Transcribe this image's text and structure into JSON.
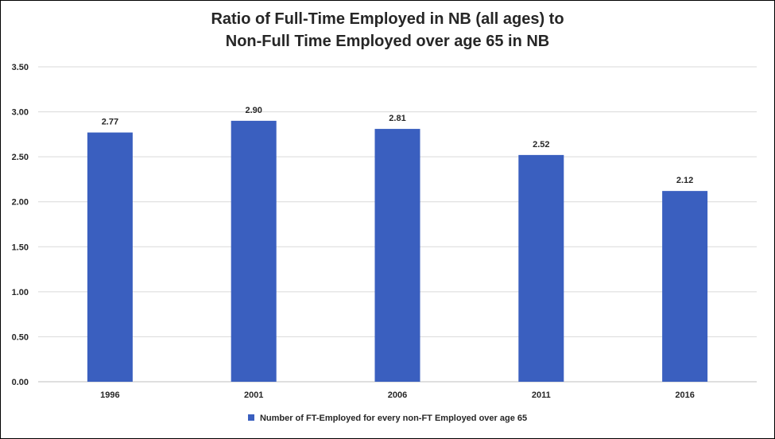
{
  "chart_data": {
    "type": "bar",
    "title_lines": [
      "Ratio of Full-Time Employed in NB (all ages) to",
      "Non-Full Time Employed over age 65 in NB"
    ],
    "categories": [
      "1996",
      "2001",
      "2006",
      "2011",
      "2016"
    ],
    "series": [
      {
        "name": "Number of FT-Employed for every non-FT Employed over age 65",
        "values": [
          2.77,
          2.9,
          2.81,
          2.52,
          2.12
        ],
        "data_labels": [
          "2.77",
          "2.90",
          "2.81",
          "2.52",
          "2.12"
        ],
        "color": "#3a5fbf"
      }
    ],
    "ylim": [
      0,
      3.5
    ],
    "yticks": [
      "0.00",
      "0.50",
      "1.00",
      "1.50",
      "2.00",
      "2.50",
      "3.00",
      "3.50"
    ],
    "grid": true,
    "legend_position": "bottom"
  }
}
